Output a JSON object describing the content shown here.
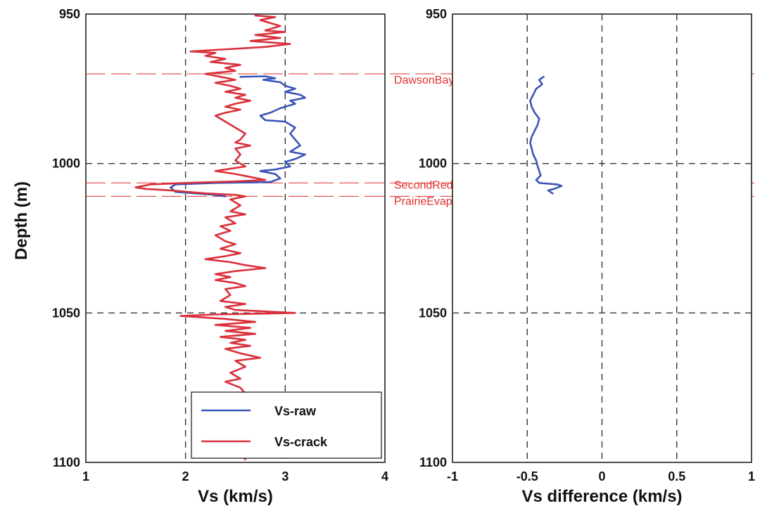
{
  "chart_data": [
    {
      "type": "line",
      "xlabel": "Vs (km/s)",
      "ylabel": "Depth (m)",
      "xlim": [
        1,
        4
      ],
      "ylim": [
        950,
        1100
      ],
      "y_inverted": true,
      "x_ticks": [
        "1",
        "2",
        "3",
        "4"
      ],
      "y_ticks": [
        "950",
        "1000",
        "1050",
        "1100"
      ],
      "grid": "dashed",
      "legend": {
        "position": "bottom-right",
        "entries": [
          {
            "label": "Vs-raw",
            "color": "#3a55b8"
          },
          {
            "label": "Vs-crack",
            "color": "#d9303a"
          }
        ]
      },
      "formations": [
        {
          "name": "DawsonBay",
          "depth": 970,
          "color": "#e03030"
        },
        {
          "name": "SecondRedBed",
          "depth": 1006.5,
          "color": "#e03030"
        },
        {
          "name": "PrairieEvaporite",
          "depth": 1011,
          "color": "#e03030"
        }
      ],
      "series": [
        {
          "name": "Vs-raw",
          "color": "#3a55b8",
          "points": [
            [
              2.55,
              971
            ],
            [
              2.8,
              970.8
            ],
            [
              2.9,
              971.5
            ],
            [
              2.78,
              972
            ],
            [
              2.95,
              972.8
            ],
            [
              3.0,
              974
            ],
            [
              3.1,
              975
            ],
            [
              3.0,
              976
            ],
            [
              3.15,
              977
            ],
            [
              3.2,
              978
            ],
            [
              3.05,
              979
            ],
            [
              3.1,
              980
            ],
            [
              2.95,
              981.5
            ],
            [
              2.85,
              983
            ],
            [
              2.75,
              984
            ],
            [
              2.8,
              985.5
            ],
            [
              3.0,
              986
            ],
            [
              3.1,
              988
            ],
            [
              3.05,
              990
            ],
            [
              3.1,
              992
            ],
            [
              3.15,
              994
            ],
            [
              3.05,
              996
            ],
            [
              3.2,
              997
            ],
            [
              3.1,
              998.5
            ],
            [
              3.0,
              999.5
            ],
            [
              3.05,
              1001
            ],
            [
              2.9,
              1002
            ],
            [
              2.75,
              1002.5
            ],
            [
              2.9,
              1003.5
            ],
            [
              2.95,
              1005
            ],
            [
              2.85,
              1006.2
            ],
            [
              2.3,
              1006.5
            ],
            [
              1.9,
              1007
            ],
            [
              1.85,
              1008
            ],
            [
              1.9,
              1009.5
            ],
            [
              2.1,
              1010
            ],
            [
              2.3,
              1010.5
            ],
            [
              2.4,
              1011
            ]
          ]
        },
        {
          "name": "Vs-crack",
          "color": "#d9303a",
          "points": [
            [
              2.7,
              950.5
            ],
            [
              2.9,
              951
            ],
            [
              2.75,
              952
            ],
            [
              2.85,
              953
            ],
            [
              2.95,
              954
            ],
            [
              2.8,
              955.5
            ],
            [
              3.0,
              956
            ],
            [
              2.7,
              957
            ],
            [
              2.95,
              958
            ],
            [
              2.65,
              959
            ],
            [
              3.05,
              960
            ],
            [
              2.8,
              961
            ],
            [
              2.55,
              961.5
            ],
            [
              2.3,
              962
            ],
            [
              2.05,
              962.5
            ],
            [
              2.3,
              963
            ],
            [
              2.2,
              964
            ],
            [
              2.4,
              965
            ],
            [
              2.25,
              966
            ],
            [
              2.55,
              967
            ],
            [
              2.4,
              968
            ],
            [
              2.5,
              969
            ],
            [
              2.2,
              970
            ],
            [
              2.35,
              971
            ],
            [
              2.5,
              972
            ],
            [
              2.3,
              973
            ],
            [
              2.45,
              974
            ],
            [
              2.55,
              975
            ],
            [
              2.4,
              976
            ],
            [
              2.6,
              977
            ],
            [
              2.5,
              978
            ],
            [
              2.65,
              979
            ],
            [
              2.5,
              980
            ],
            [
              2.4,
              981
            ],
            [
              2.55,
              982
            ],
            [
              2.4,
              983
            ],
            [
              2.3,
              984
            ],
            [
              2.4,
              986
            ],
            [
              2.5,
              988
            ],
            [
              2.6,
              990
            ],
            [
              2.55,
              992
            ],
            [
              2.5,
              993
            ],
            [
              2.65,
              994
            ],
            [
              2.5,
              995
            ],
            [
              2.55,
              997
            ],
            [
              2.5,
              999
            ],
            [
              2.55,
              1000
            ],
            [
              2.6,
              1001
            ],
            [
              2.4,
              1002
            ],
            [
              2.3,
              1002.5
            ],
            [
              2.5,
              1003.5
            ],
            [
              2.65,
              1004.5
            ],
            [
              2.8,
              1005.5
            ],
            [
              2.5,
              1006
            ],
            [
              2.0,
              1006.5
            ],
            [
              1.65,
              1007
            ],
            [
              1.5,
              1008
            ],
            [
              1.6,
              1008.5
            ],
            [
              1.85,
              1009
            ],
            [
              2.2,
              1010
            ],
            [
              2.5,
              1010.5
            ],
            [
              2.6,
              1011
            ],
            [
              2.45,
              1012
            ],
            [
              2.55,
              1014
            ],
            [
              2.45,
              1016
            ],
            [
              2.6,
              1017
            ],
            [
              2.4,
              1018
            ],
            [
              2.5,
              1020
            ],
            [
              2.35,
              1021
            ],
            [
              2.45,
              1022.5
            ],
            [
              2.3,
              1024
            ],
            [
              2.4,
              1026
            ],
            [
              2.5,
              1027
            ],
            [
              2.35,
              1028.5
            ],
            [
              2.55,
              1030
            ],
            [
              2.4,
              1031
            ],
            [
              2.2,
              1032
            ],
            [
              2.45,
              1033
            ],
            [
              2.6,
              1034
            ],
            [
              2.8,
              1035
            ],
            [
              2.5,
              1036
            ],
            [
              2.3,
              1037
            ],
            [
              2.45,
              1038
            ],
            [
              2.3,
              1039
            ],
            [
              2.5,
              1040
            ],
            [
              2.6,
              1041
            ],
            [
              2.4,
              1042
            ],
            [
              2.45,
              1044
            ],
            [
              2.35,
              1046
            ],
            [
              2.6,
              1047
            ],
            [
              2.4,
              1048
            ],
            [
              2.5,
              1049
            ],
            [
              3.1,
              1050
            ],
            [
              2.3,
              1050.5
            ],
            [
              1.95,
              1051
            ],
            [
              2.4,
              1052
            ],
            [
              2.7,
              1053
            ],
            [
              2.3,
              1054
            ],
            [
              2.65,
              1055
            ],
            [
              2.4,
              1056
            ],
            [
              2.7,
              1057
            ],
            [
              2.35,
              1058
            ],
            [
              2.6,
              1059
            ],
            [
              2.45,
              1060
            ],
            [
              2.65,
              1061
            ],
            [
              2.4,
              1062
            ],
            [
              2.55,
              1063.5
            ],
            [
              2.75,
              1065
            ],
            [
              2.5,
              1066
            ],
            [
              2.6,
              1068
            ],
            [
              2.45,
              1070
            ],
            [
              2.55,
              1072
            ],
            [
              2.4,
              1073
            ],
            [
              2.55,
              1075
            ],
            [
              2.6,
              1077
            ],
            [
              2.5,
              1079
            ],
            [
              2.55,
              1081
            ],
            [
              2.55,
              1097
            ],
            [
              2.6,
              1099
            ]
          ]
        }
      ]
    },
    {
      "type": "line",
      "xlabel": "Vs difference (km/s)",
      "ylabel": "",
      "xlim": [
        -1,
        1
      ],
      "ylim": [
        950,
        1100
      ],
      "y_inverted": true,
      "x_ticks": [
        "-1",
        "-0.5",
        "0",
        "0.5",
        "1"
      ],
      "y_ticks": [
        "950",
        "1000",
        "1050",
        "1100"
      ],
      "grid": "dashed",
      "formations": [
        {
          "name": "DawsonBay",
          "depth": 970,
          "color": "#e03030"
        },
        {
          "name": "SecondRedBed",
          "depth": 1006.5,
          "color": "#e03030"
        },
        {
          "name": "PrairieEvaporite",
          "depth": 1011,
          "color": "#e03030"
        }
      ],
      "series": [
        {
          "name": "Vs difference",
          "color": "#3a55b8",
          "points": [
            [
              -0.39,
              971
            ],
            [
              -0.42,
              972
            ],
            [
              -0.4,
              973.5
            ],
            [
              -0.44,
              975
            ],
            [
              -0.46,
              977
            ],
            [
              -0.48,
              979
            ],
            [
              -0.47,
              981
            ],
            [
              -0.45,
              983
            ],
            [
              -0.42,
              985
            ],
            [
              -0.43,
              987
            ],
            [
              -0.45,
              989
            ],
            [
              -0.47,
              991
            ],
            [
              -0.48,
              993
            ],
            [
              -0.47,
              995
            ],
            [
              -0.46,
              997
            ],
            [
              -0.44,
              999
            ],
            [
              -0.43,
              1001
            ],
            [
              -0.42,
              1002.5
            ],
            [
              -0.41,
              1004
            ],
            [
              -0.44,
              1005.5
            ],
            [
              -0.42,
              1006.5
            ],
            [
              -0.3,
              1007
            ],
            [
              -0.27,
              1007.5
            ],
            [
              -0.32,
              1008.5
            ],
            [
              -0.36,
              1009
            ],
            [
              -0.33,
              1010
            ]
          ]
        }
      ]
    }
  ]
}
